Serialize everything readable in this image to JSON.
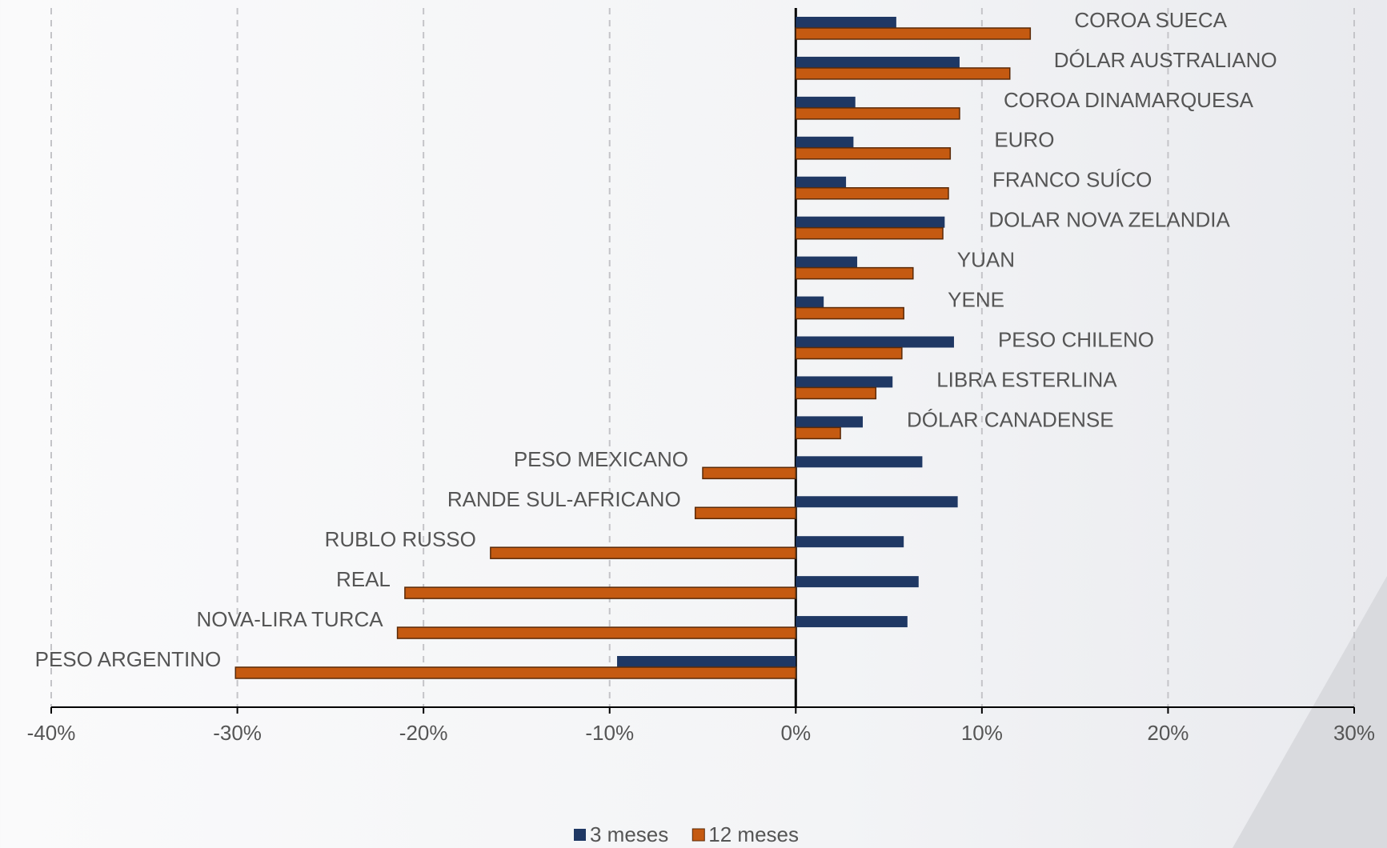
{
  "chart_data": {
    "type": "bar",
    "orientation": "horizontal",
    "categories": [
      "COROA SUECA",
      "DÓLAR AUSTRALIANO",
      "COROA DINAMARQUESA",
      "EURO",
      "FRANCO SUÍCO",
      "DOLAR NOVA ZELANDIA",
      "YUAN",
      "YENE",
      "PESO CHILENO",
      "LIBRA ESTERLINA",
      "DÓLAR CANADENSE",
      "PESO MEXICANO",
      "RANDE SUL-AFRICANO",
      "RUBLO RUSSO",
      "REAL",
      "NOVA-LIRA TURCA",
      "PESO ARGENTINO"
    ],
    "series": [
      {
        "name": "3 meses",
        "color": "#1f3864",
        "values": [
          5.4,
          8.8,
          3.2,
          3.1,
          2.7,
          8.0,
          3.3,
          1.5,
          8.5,
          5.2,
          3.6,
          6.8,
          8.7,
          5.8,
          6.6,
          6.0,
          -9.6
        ]
      },
      {
        "name": "12 meses",
        "color": "#c55a11",
        "values": [
          12.6,
          11.5,
          8.8,
          8.3,
          8.2,
          7.9,
          6.3,
          5.8,
          5.7,
          4.3,
          2.4,
          -5.0,
          -5.4,
          -16.4,
          -21.0,
          -21.4,
          -30.1
        ]
      }
    ],
    "xlim": [
      -40,
      30
    ],
    "xticks": [
      {
        "value": -40,
        "label": "-40%"
      },
      {
        "value": -30,
        "label": "-30%"
      },
      {
        "value": -20,
        "label": "-20%"
      },
      {
        "value": -10,
        "label": "-10%"
      },
      {
        "value": 0,
        "label": "0%"
      },
      {
        "value": 10,
        "label": "10%"
      },
      {
        "value": 20,
        "label": "20%"
      },
      {
        "value": 30,
        "label": "30%"
      }
    ],
    "grid": true,
    "legend": "bottom"
  }
}
